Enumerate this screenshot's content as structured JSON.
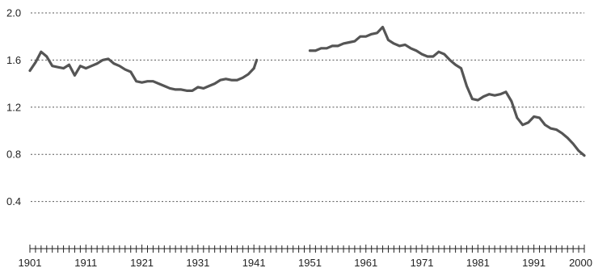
{
  "chart_data": {
    "type": "line",
    "title": "",
    "xlabel": "",
    "ylabel": "",
    "xlim": [
      1901,
      2000
    ],
    "ylim": [
      0,
      2.0
    ],
    "y_ticks": [
      "2.0",
      "1.6",
      "1.2",
      "0.8",
      "0.4"
    ],
    "y_tick_values": [
      2.0,
      1.6,
      1.2,
      0.8,
      0.4
    ],
    "x_ticks": [
      "1901",
      "1911",
      "1921",
      "1931",
      "1941",
      "1951",
      "1961",
      "1971",
      "1981",
      "1991",
      "2000"
    ],
    "x_tick_values": [
      1901,
      1911,
      1921,
      1931,
      1941,
      1951,
      1961,
      1971,
      1981,
      1991,
      2000
    ],
    "grid": "horizontal-dotted",
    "legend": "none",
    "line_color": "#555555",
    "series": [
      {
        "segments": [
          {
            "x": [
              1901,
              1902,
              1903,
              1904,
              1905,
              1906,
              1907,
              1908,
              1909,
              1910,
              1911,
              1912,
              1913,
              1914,
              1915,
              1916,
              1917,
              1918,
              1919,
              1920,
              1921,
              1922,
              1923,
              1924,
              1925,
              1926,
              1927,
              1928,
              1929,
              1930,
              1931,
              1932,
              1933,
              1934,
              1935,
              1936,
              1937,
              1938,
              1939,
              1940,
              1941
            ],
            "y": [
              1.51,
              1.58,
              1.67,
              1.63,
              1.55,
              1.54,
              1.53,
              1.56,
              1.47,
              1.55,
              1.53,
              1.55,
              1.57,
              1.6,
              1.61,
              1.57,
              1.55,
              1.52,
              1.5,
              1.42,
              1.41,
              1.42,
              1.42,
              1.4,
              1.38,
              1.36,
              1.35,
              1.35,
              1.34,
              1.34,
              1.37,
              1.36,
              1.38,
              1.4,
              1.43,
              1.44,
              1.43,
              1.43,
              1.45,
              1.48,
              1.53
            ]
          },
          {
            "x": [
              1941.5
            ],
            "y": [
              1.6
            ]
          },
          {
            "x": [
              1951,
              1952,
              1953,
              1954,
              1955,
              1956,
              1957,
              1958,
              1959,
              1960,
              1961,
              1962,
              1963,
              1964,
              1965,
              1966,
              1967,
              1968,
              1969,
              1970,
              1971,
              1972,
              1973,
              1974,
              1975,
              1976,
              1977,
              1978,
              1979,
              1980,
              1981,
              1982,
              1983,
              1984,
              1985,
              1986,
              1987,
              1988,
              1989,
              1990,
              1991,
              1992,
              1993,
              1994,
              1995,
              1996,
              1997,
              1998,
              1999,
              2000
            ],
            "y": [
              1.68,
              1.68,
              1.7,
              1.7,
              1.72,
              1.72,
              1.74,
              1.75,
              1.76,
              1.8,
              1.8,
              1.82,
              1.83,
              1.88,
              1.77,
              1.74,
              1.72,
              1.73,
              1.7,
              1.68,
              1.65,
              1.63,
              1.63,
              1.67,
              1.65,
              1.6,
              1.56,
              1.53,
              1.38,
              1.27,
              1.26,
              1.29,
              1.31,
              1.3,
              1.31,
              1.33,
              1.25,
              1.11,
              1.05,
              1.07,
              1.12,
              1.11,
              1.05,
              1.02,
              1.01,
              0.98,
              0.94,
              0.89,
              0.83,
              0.79
            ]
          }
        ]
      }
    ]
  }
}
